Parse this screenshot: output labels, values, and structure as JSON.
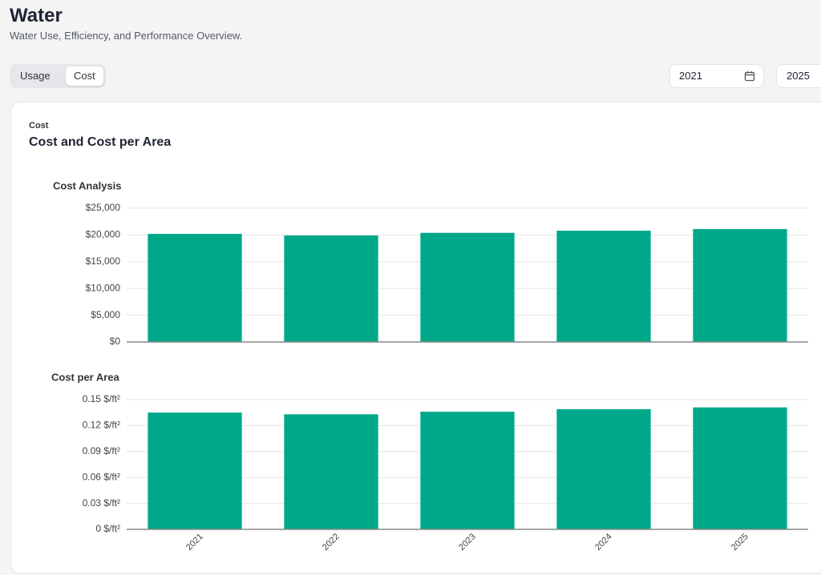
{
  "header": {
    "title": "Water",
    "subtitle": "Water Use, Efficiency, and Performance Overview."
  },
  "tabs": [
    "Usage",
    "Cost"
  ],
  "date_range": {
    "start": "2021",
    "end": "2025"
  },
  "card": {
    "eyebrow": "Cost",
    "title": "Cost and Cost per Area"
  },
  "chart_data": [
    {
      "type": "bar",
      "title": "Cost Analysis",
      "values": [
        20200,
        19900,
        20400,
        20800,
        21100
      ],
      "color": "#00a88a",
      "ylim": [
        0,
        25000
      ],
      "yticks": [
        {
          "value": 0,
          "label": "$0"
        },
        {
          "value": 5000,
          "label": "$5,000"
        },
        {
          "value": 10000,
          "label": "$10,000"
        },
        {
          "value": 15000,
          "label": "$15,000"
        },
        {
          "value": 20000,
          "label": "$20,000"
        },
        {
          "value": 25000,
          "label": "$25,000"
        }
      ],
      "grid": true
    },
    {
      "type": "bar",
      "title": "Cost per Area",
      "categories": [
        "2021",
        "2022",
        "2023",
        "2024",
        "2025"
      ],
      "values": [
        0.135,
        0.133,
        0.136,
        0.139,
        0.141
      ],
      "color": "#00a88a",
      "ylim": [
        0,
        0.15
      ],
      "yticks": [
        {
          "value": 0,
          "label": "0 $/ft²"
        },
        {
          "value": 0.03,
          "label": "0.03 $/ft²"
        },
        {
          "value": 0.06,
          "label": "0.06 $/ft²"
        },
        {
          "value": 0.09,
          "label": "0.09 $/ft²"
        },
        {
          "value": 0.12,
          "label": "0.12 $/ft²"
        },
        {
          "value": 0.15,
          "label": "0.15 $/ft²"
        }
      ],
      "grid": true
    }
  ]
}
